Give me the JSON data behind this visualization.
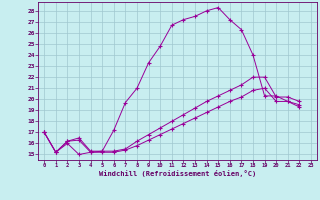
{
  "xlabel": "Windchill (Refroidissement éolien,°C)",
  "bg_color": "#c8eef0",
  "grid_color": "#a0c8d0",
  "line_color": "#990099",
  "xlim": [
    -0.5,
    23.5
  ],
  "ylim": [
    14.5,
    28.8
  ],
  "yticks": [
    15,
    16,
    17,
    18,
    19,
    20,
    21,
    22,
    23,
    24,
    25,
    26,
    27,
    28
  ],
  "xticks": [
    0,
    1,
    2,
    3,
    4,
    5,
    6,
    7,
    8,
    9,
    10,
    11,
    12,
    13,
    14,
    15,
    16,
    17,
    18,
    19,
    20,
    21,
    22,
    23
  ],
  "s1x": [
    0,
    1,
    2,
    3,
    4,
    5,
    6,
    7,
    8,
    9,
    10,
    11,
    12,
    13,
    14,
    15,
    16,
    17,
    18,
    19,
    20,
    21,
    22
  ],
  "s1y": [
    17.0,
    15.2,
    16.0,
    15.0,
    15.2,
    15.3,
    17.2,
    19.7,
    21.0,
    23.3,
    24.8,
    26.7,
    27.2,
    27.5,
    28.0,
    28.3,
    27.2,
    26.3,
    24.0,
    20.3,
    20.3,
    19.8,
    19.5
  ],
  "s2x": [
    0,
    1,
    2,
    3,
    4,
    5,
    6,
    7,
    8,
    9,
    10,
    11,
    12,
    13,
    14,
    15,
    16,
    17,
    18,
    19,
    20,
    21,
    22
  ],
  "s2y": [
    17.0,
    15.2,
    16.2,
    16.5,
    15.3,
    15.3,
    15.3,
    15.5,
    16.2,
    16.8,
    17.4,
    18.0,
    18.6,
    19.2,
    19.8,
    20.3,
    20.8,
    21.3,
    22.0,
    22.0,
    20.2,
    20.2,
    19.8
  ],
  "s3x": [
    0,
    1,
    2,
    3,
    4,
    5,
    6,
    7,
    8,
    9,
    10,
    11,
    12,
    13,
    14,
    15,
    16,
    17,
    18,
    19,
    20,
    21,
    22
  ],
  "s3y": [
    17.0,
    15.2,
    16.2,
    16.3,
    15.2,
    15.2,
    15.2,
    15.4,
    15.8,
    16.3,
    16.8,
    17.3,
    17.8,
    18.3,
    18.8,
    19.3,
    19.8,
    20.2,
    20.8,
    21.0,
    19.8,
    19.8,
    19.3
  ]
}
